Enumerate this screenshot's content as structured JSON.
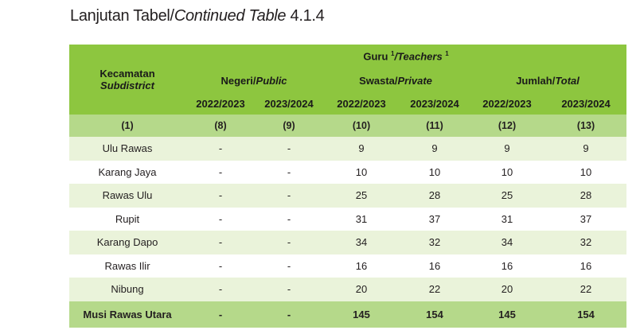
{
  "caption": {
    "main": "Lanjutan Tabel/",
    "italic": "Continued Table",
    "number": " 4.1.4"
  },
  "header": {
    "row_label": "Kecamatan",
    "row_label_en": "Subdistrict",
    "group": "Guru ",
    "group_sup1": "1",
    "group_en": "/Teachers ",
    "group_sup2": "1",
    "cols": [
      {
        "id": "Negeri/",
        "en": "Public"
      },
      {
        "id": "Swasta/",
        "en": "Private"
      },
      {
        "id": "Jumlah/",
        "en": "Total"
      }
    ],
    "years": [
      "2022/2023",
      "2023/2024",
      "2022/2023",
      "2023/2024",
      "2022/2023",
      "2023/2024"
    ],
    "col_numbers": [
      "(1)",
      "(8)",
      "(9)",
      "(10)",
      "(11)",
      "(12)",
      "(13)"
    ]
  },
  "rows": [
    {
      "name": "Ulu Rawas",
      "values": [
        "-",
        "-",
        "9",
        "9",
        "9",
        "9"
      ]
    },
    {
      "name": "Karang Jaya",
      "values": [
        "-",
        "-",
        "10",
        "10",
        "10",
        "10"
      ]
    },
    {
      "name": "Rawas Ulu",
      "values": [
        "-",
        "-",
        "25",
        "28",
        "25",
        "28"
      ]
    },
    {
      "name": "Rupit",
      "values": [
        "-",
        "-",
        "31",
        "37",
        "31",
        "37"
      ]
    },
    {
      "name": "Karang Dapo",
      "values": [
        "-",
        "-",
        "34",
        "32",
        "34",
        "32"
      ]
    },
    {
      "name": "Rawas Ilir",
      "values": [
        "-",
        "-",
        "16",
        "16",
        "16",
        "16"
      ]
    },
    {
      "name": "Nibung",
      "values": [
        "-",
        "-",
        "20",
        "22",
        "20",
        "22"
      ]
    }
  ],
  "total": {
    "name": "Musi Rawas Utara",
    "values": [
      "-",
      "-",
      "145",
      "154",
      "145",
      "154"
    ]
  }
}
